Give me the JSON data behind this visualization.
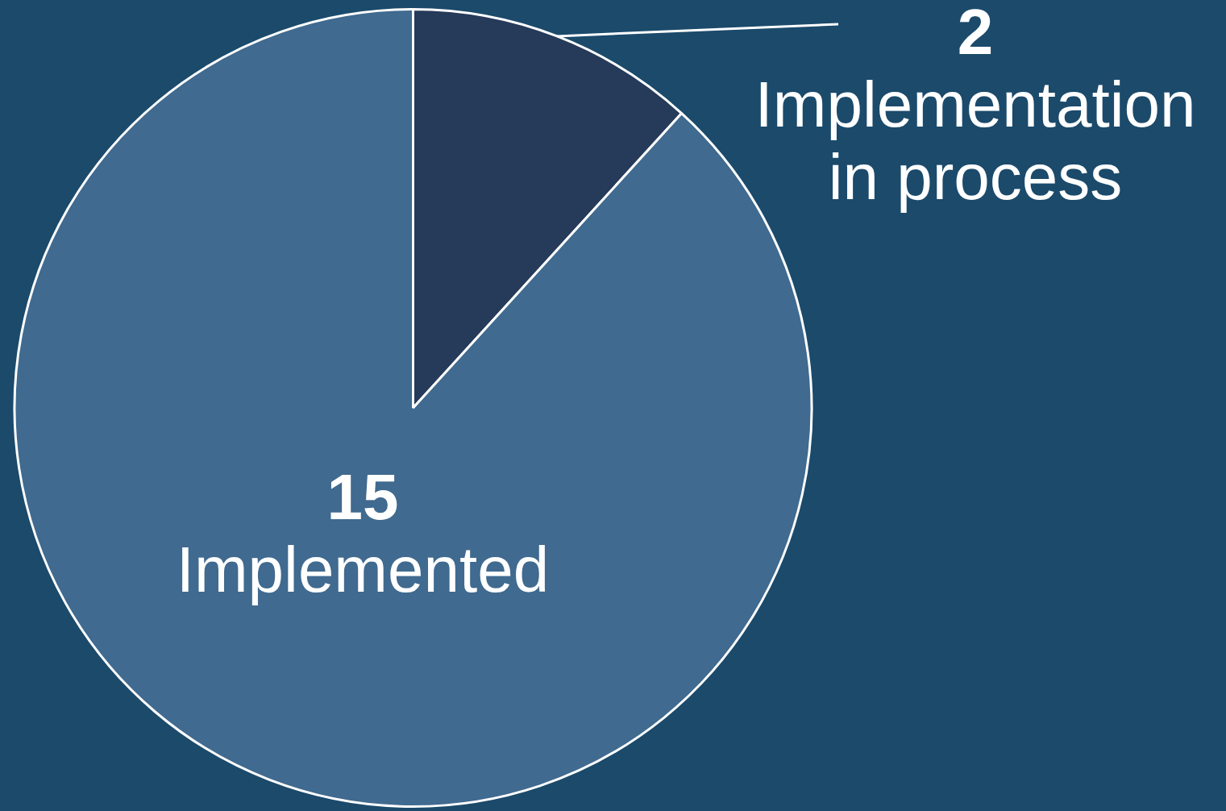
{
  "chart_data": {
    "type": "pie",
    "categories": [
      "Implementation in process",
      "Implemented"
    ],
    "values": [
      2,
      15
    ],
    "colors": [
      "#263a5a",
      "#406a8f"
    ],
    "data_labels": true,
    "legend": false
  }
}
